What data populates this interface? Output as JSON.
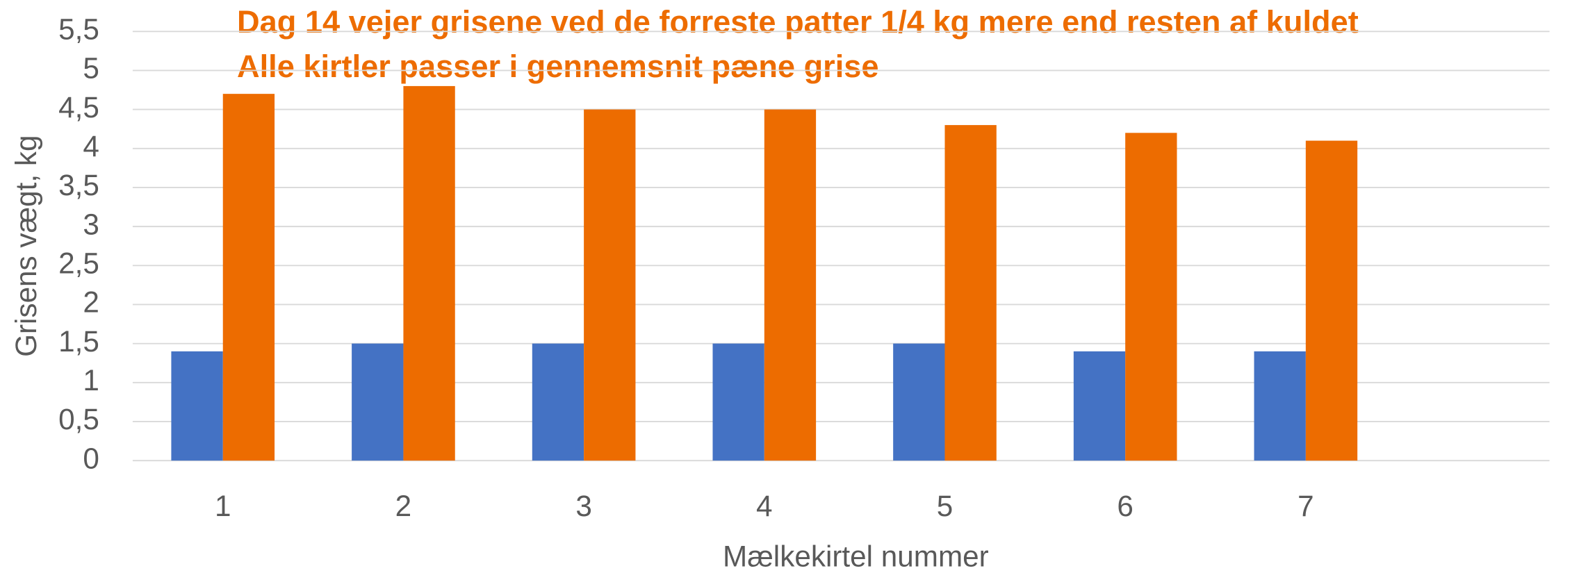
{
  "chart_data": {
    "type": "bar",
    "title": [
      "Dag 14 vejer grisene ved de forreste patter 1/4 kg mere end resten af kuldet",
      "Alle kirtler passer i gennemsnit pæne grise"
    ],
    "x_label": "Mælkekirtel nummer",
    "y_label": "Grisens vægt, kg",
    "categories": [
      "1",
      "2",
      "3",
      "4",
      "5",
      "6",
      "7",
      null
    ],
    "series": [
      {
        "color": "#4472c4",
        "values": [
          1.4,
          1.5,
          1.5,
          1.5,
          1.5,
          1.4,
          1.4,
          null
        ]
      },
      {
        "color": "#ed6c00",
        "values": [
          4.7,
          4.8,
          4.5,
          4.5,
          4.3,
          4.2,
          4.1,
          null
        ]
      }
    ],
    "ylim": [
      0,
      5.5
    ],
    "yticks": [
      0,
      {
        "value": 0.5,
        "label": "0,5"
      },
      1,
      {
        "value": 1.5,
        "label": "1,5"
      },
      2,
      {
        "value": 2.5,
        "label": "2,5"
      },
      3,
      {
        "value": 3.5,
        "label": "3,5"
      },
      4,
      {
        "value": 4.5,
        "label": "4,5"
      },
      5,
      {
        "value": 5.5,
        "label": "5,5"
      }
    ],
    "grid": true
  }
}
